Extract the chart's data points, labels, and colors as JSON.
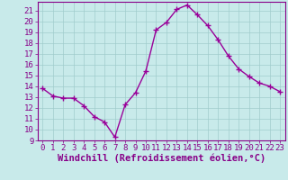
{
  "x": [
    0,
    1,
    2,
    3,
    4,
    5,
    6,
    7,
    8,
    9,
    10,
    11,
    12,
    13,
    14,
    15,
    16,
    17,
    18,
    19,
    20,
    21,
    22,
    23
  ],
  "y": [
    13.8,
    13.1,
    12.9,
    12.9,
    12.2,
    11.2,
    10.7,
    9.3,
    12.3,
    13.4,
    15.4,
    19.2,
    19.9,
    21.1,
    21.5,
    20.6,
    19.6,
    18.3,
    16.8,
    15.6,
    14.9,
    14.3,
    14.0,
    13.5
  ],
  "line_color": "#990099",
  "marker_color": "#990099",
  "bg_color": "#c8eaea",
  "grid_color": "#a0cccc",
  "axis_color": "#880088",
  "xlabel": "Windchill (Refroidissement éolien,°C)",
  "ylim_min": 9,
  "ylim_max": 21.8,
  "xlim_min": -0.5,
  "xlim_max": 23.5,
  "yticks": [
    9,
    10,
    11,
    12,
    13,
    14,
    15,
    16,
    17,
    18,
    19,
    20,
    21
  ],
  "xticks": [
    0,
    1,
    2,
    3,
    4,
    5,
    6,
    7,
    8,
    9,
    10,
    11,
    12,
    13,
    14,
    15,
    16,
    17,
    18,
    19,
    20,
    21,
    22,
    23
  ],
  "xlabel_fontsize": 7.5,
  "tick_fontsize": 6.5,
  "line_width": 1.0,
  "marker_size": 2.5
}
